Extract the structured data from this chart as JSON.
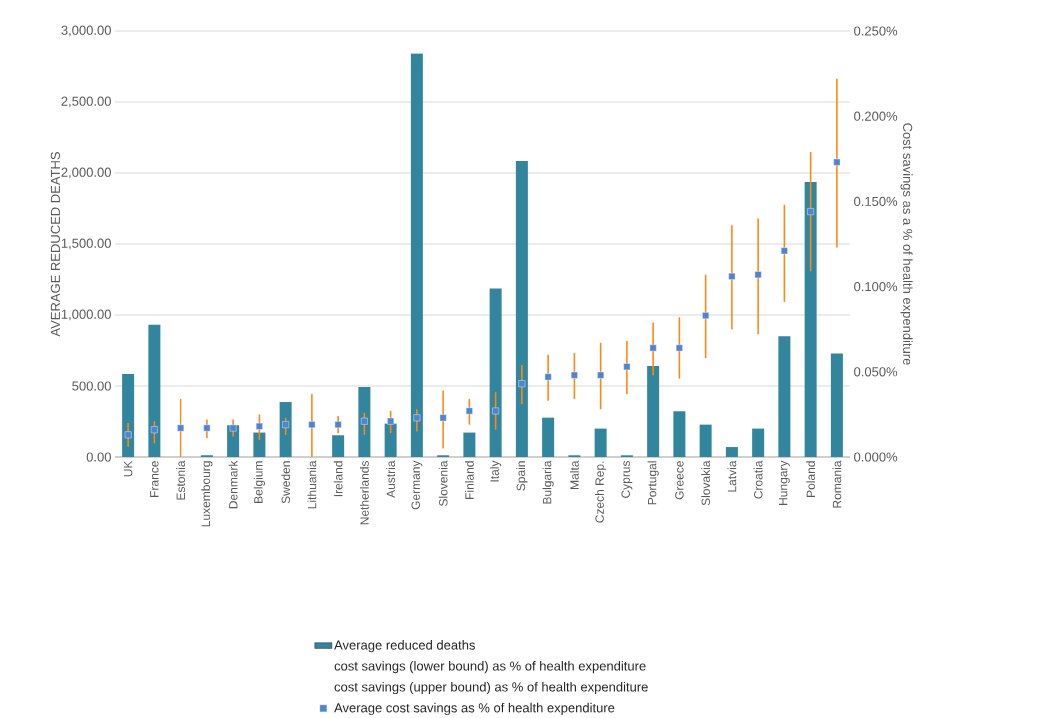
{
  "chart_data": {
    "type": "bar",
    "categories": [
      "UK",
      "France",
      "Estonia",
      "Luxembourg",
      "Denmark",
      "Belgium",
      "Sweden",
      "Lithuania",
      "Ireland",
      "Netherlands",
      "Austria",
      "Germany",
      "Slovenia",
      "Finland",
      "Italy",
      "Spain",
      "Bulgaria",
      "Malta",
      "Czech Rep.",
      "Cyprus",
      "Portugal",
      "Greece",
      "Slovakia",
      "Latvia",
      "Croatia",
      "Hungary",
      "Poland",
      "Romania"
    ],
    "series": [
      {
        "name": "Average reduced deaths",
        "type": "bar",
        "color": "#31859c",
        "values": [
          585,
          932,
          0,
          12,
          223,
          172,
          387,
          0,
          153,
          493,
          235,
          2841,
          12,
          172,
          1186,
          2085,
          277,
          12,
          200,
          12,
          641,
          322,
          228,
          70,
          200,
          850,
          1937,
          728
        ]
      },
      {
        "name": "Average cost savings as % of health expenditure",
        "type": "scatter",
        "axis": "y2",
        "marker": "square",
        "color": "#4a86d8",
        "values": [
          0.013,
          0.016,
          0.017,
          0.017,
          0.017,
          0.018,
          0.019,
          0.019,
          0.019,
          0.021,
          0.021,
          0.023,
          0.023,
          0.027,
          0.027,
          0.043,
          0.047,
          0.048,
          0.048,
          0.053,
          0.064,
          0.064,
          0.083,
          0.106,
          0.107,
          0.121,
          0.144,
          0.173
        ],
        "errors": [
          [
            0.006,
            0.02
          ],
          [
            0.008,
            0.021
          ],
          [
            0,
            0.034
          ],
          [
            0.011,
            0.022
          ],
          [
            0.012,
            0.022
          ],
          [
            0.01,
            0.025
          ],
          [
            0.013,
            0.023
          ],
          [
            0,
            0.037
          ],
          [
            0.014,
            0.024
          ],
          [
            0.013,
            0.026
          ],
          [
            0.014,
            0.027
          ],
          [
            0.015,
            0.028
          ],
          [
            0.005,
            0.039
          ],
          [
            0.019,
            0.034
          ],
          [
            0.016,
            0.038
          ],
          [
            0.031,
            0.054
          ],
          [
            0.033,
            0.06
          ],
          [
            0.034,
            0.061
          ],
          [
            0.028,
            0.067
          ],
          [
            0.037,
            0.068
          ],
          [
            0.048,
            0.079
          ],
          [
            0.046,
            0.082
          ],
          [
            0.058,
            0.107
          ],
          [
            0.075,
            0.136
          ],
          [
            0.072,
            0.14
          ],
          [
            0.091,
            0.148
          ],
          [
            0.109,
            0.179
          ],
          [
            0.123,
            0.222
          ]
        ]
      }
    ],
    "ylabel": "AVERAGE  REDUCED DEATHS",
    "y2label": "Cost savings as a % of health expenditure",
    "ylim": [
      0,
      3000
    ],
    "yticks": [
      {
        "value": 0,
        "label": "0.00"
      },
      {
        "value": 500,
        "label": "500.00"
      },
      {
        "value": 1000,
        "label": "1,000.00"
      },
      {
        "value": 1500,
        "label": "1,500.00"
      },
      {
        "value": 2000,
        "label": "2,000.00"
      },
      {
        "value": 2500,
        "label": "2,500.00"
      },
      {
        "value": 3000,
        "label": "3,000.00"
      }
    ],
    "y2lim": [
      0,
      0.25
    ],
    "y2ticks": [
      {
        "value": 0,
        "label": "0.000%"
      },
      {
        "value": 0.05,
        "label": "0.050%"
      },
      {
        "value": 0.1,
        "label": "0.100%"
      },
      {
        "value": 0.15,
        "label": "0.150%"
      },
      {
        "value": 0.2,
        "label": "0.200%"
      },
      {
        "value": 0.25,
        "label": "0.250%"
      }
    ],
    "annotations": [
      "cost savings (lower bound) as % of health expenditure",
      "cost savings (upper bound) as % of health expenditure"
    ],
    "grid": "y",
    "legend": "bottom"
  }
}
